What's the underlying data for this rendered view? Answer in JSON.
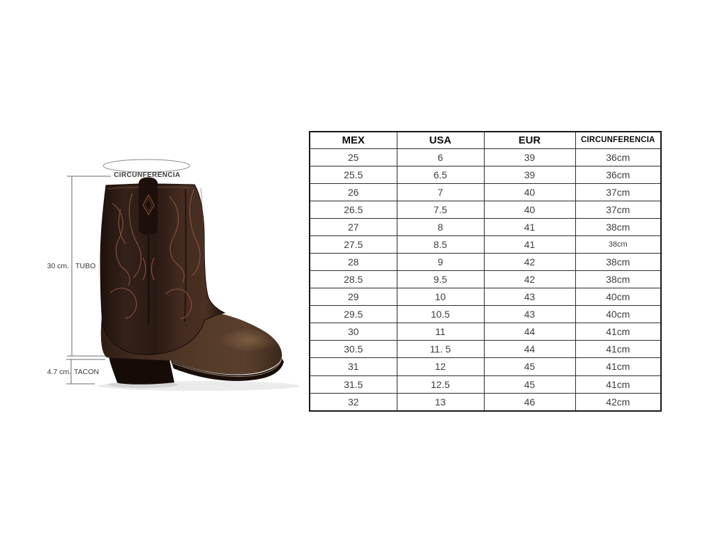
{
  "page": {
    "background": "#ffffff"
  },
  "boot_diagram": {
    "circumference_label": "CIRCUNFERENCIA",
    "tube": {
      "measure": "30 cm.",
      "label": "TUBO"
    },
    "heel": {
      "measure": "4.7 cm.",
      "label": "TACON"
    },
    "colors": {
      "shaft_brown": "#2e1c14",
      "vamp_brown": "#543a28",
      "heel_black": "#150c08",
      "stitch_accent": "#8a5540",
      "measure_line": "#6a6a6a"
    }
  },
  "chart_data": {
    "type": "table",
    "columns": [
      "MEX",
      "USA",
      "EUR",
      "CIRCUNFERENCIA"
    ],
    "rows": [
      [
        "25",
        "6",
        "39",
        "36cm"
      ],
      [
        "25.5",
        "6.5",
        "39",
        "36cm"
      ],
      [
        "26",
        "7",
        "40",
        "37cm"
      ],
      [
        "26.5",
        "7.5",
        "40",
        "37cm"
      ],
      [
        "27",
        "8",
        "41",
        "38cm"
      ],
      [
        "27.5",
        "8.5",
        "41",
        "38cm"
      ],
      [
        "28",
        "9",
        "42",
        "38cm"
      ],
      [
        "28.5",
        "9.5",
        "42",
        "38cm"
      ],
      [
        "29",
        "10",
        "43",
        "40cm"
      ],
      [
        "29.5",
        "10.5",
        "43",
        "40cm"
      ],
      [
        "30",
        "11",
        "44",
        "41cm"
      ],
      [
        "30.5",
        "11. 5",
        "44",
        "41cm"
      ],
      [
        "31",
        "12",
        "45",
        "41cm"
      ],
      [
        "31.5",
        "12.5",
        "45",
        "41cm"
      ],
      [
        "32",
        "13",
        "46",
        "42cm"
      ]
    ],
    "layout": {
      "grid": "full-borders",
      "header_row": true
    }
  }
}
